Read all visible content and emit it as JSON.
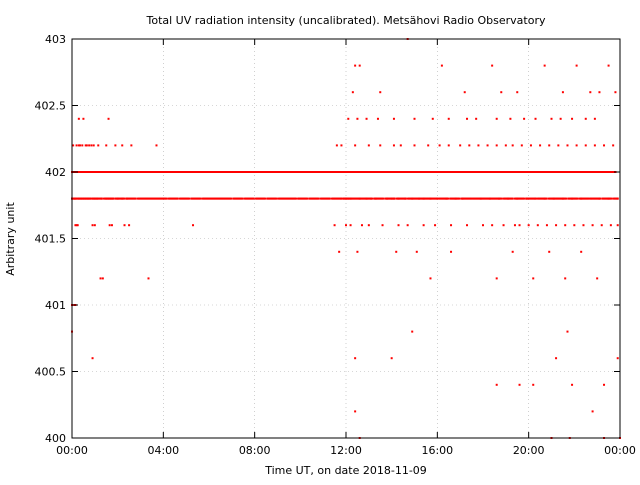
{
  "chart_data": {
    "type": "scatter",
    "title": "Total UV radiation intensity (uncalibrated). Metsähovi Radio Observatory",
    "xlabel": "Time UT, on date 2018-11-09",
    "ylabel": "Arbitrary unit",
    "x_unit": "hours UT",
    "xlim": [
      0,
      24
    ],
    "ylim": [
      400,
      403
    ],
    "x_ticks": [
      0,
      4,
      8,
      12,
      16,
      20,
      24
    ],
    "x_tick_labels": [
      "00:00",
      "04:00",
      "08:00",
      "12:00",
      "16:00",
      "20:00",
      "00:00"
    ],
    "y_ticks": [
      400,
      400.5,
      401,
      401.5,
      402,
      402.5,
      403
    ],
    "y_tick_labels": [
      "400",
      "400.5",
      "401",
      "401.5",
      "402",
      "402.5",
      "403"
    ],
    "grid": true,
    "marker_color": "#ff0000",
    "series": [
      {
        "values_note": "",
        "x": [
          0.0,
          0.04,
          0.08,
          0.12,
          0.15,
          0.2,
          0.25,
          0.3,
          0.35,
          0.4,
          0.45,
          0.5,
          0.55,
          0.6,
          0.7,
          0.8,
          0.9,
          1.0,
          1.1,
          1.2,
          0.0,
          0.1,
          0.15,
          0.3,
          0.4,
          0.5,
          0.6,
          0.7,
          0.8,
          0.9,
          1.0,
          1.1,
          1.3,
          1.5,
          1.6,
          1.7,
          1.8,
          2.0,
          2.2,
          2.4,
          0.05,
          0.1,
          0.3,
          0.5,
          0.6,
          0.9,
          1.0,
          1.5,
          1.7,
          1.9,
          2.1,
          2.3,
          2.5,
          2.9,
          3.2,
          3.5,
          3.6,
          3.7,
          3.8,
          5.3,
          0.05,
          0.2,
          0.3,
          0.35,
          0.45,
          0.6,
          0.65,
          0.75,
          0.85,
          0.95,
          1.15,
          1.5,
          1.9,
          2.2,
          2.6,
          3.7,
          0.15,
          0.2,
          0.25,
          0.9,
          1.0,
          1.65,
          1.75,
          2.3,
          2.5,
          0.3,
          0.5,
          1.6,
          0.0,
          0.1,
          0.15,
          1.25,
          1.35,
          3.35,
          0.0,
          0.9,
          11.7,
          12.3,
          12.45,
          12.55,
          12.7,
          13.2,
          13.4,
          14.2,
          14.5,
          14.8,
          15.1,
          15.5,
          15.9,
          16.3,
          16.7,
          17.2,
          17.6,
          18.0,
          18.5,
          19.0,
          19.4,
          19.8,
          20.2,
          20.6,
          21.0,
          21.4,
          21.8,
          22.2,
          22.6,
          23.0,
          23.4,
          23.8,
          11.8,
          11.9,
          12.0,
          12.1,
          12.2,
          12.6,
          12.9,
          13.1,
          13.3,
          13.8,
          14.0,
          14.1,
          14.3,
          14.6,
          14.9,
          15.2,
          15.4,
          15.7,
          16.0,
          16.4,
          16.8,
          17.1,
          17.5,
          17.9,
          18.3,
          18.7,
          19.1,
          19.5,
          19.9,
          20.3,
          20.7,
          21.1,
          21.5,
          21.9,
          22.3,
          22.7,
          23.1,
          23.5,
          23.9,
          11.6,
          11.8,
          12.4,
          13.0,
          13.5,
          14.1,
          14.4,
          15.0,
          15.6,
          16.1,
          16.5,
          17.0,
          17.4,
          17.8,
          18.2,
          18.6,
          19.0,
          19.3,
          19.7,
          20.1,
          20.5,
          20.9,
          21.3,
          21.7,
          22.1,
          22.5,
          22.9,
          23.3,
          23.7,
          11.5,
          12.0,
          12.2,
          12.7,
          13.0,
          13.6,
          14.3,
          14.7,
          15.4,
          15.9,
          16.6,
          17.3,
          18.0,
          18.4,
          18.9,
          19.4,
          19.6,
          20.0,
          20.4,
          20.8,
          21.2,
          21.6,
          22.0,
          22.4,
          22.8,
          23.2,
          23.6,
          23.9,
          12.1,
          12.5,
          12.9,
          13.4,
          14.1,
          15.0,
          15.8,
          16.5,
          17.3,
          17.7,
          18.6,
          19.2,
          19.8,
          20.3,
          21.0,
          21.4,
          21.9,
          22.5,
          22.9,
          12.3,
          12.4,
          12.6,
          13.5,
          14.7,
          16.2,
          17.2,
          18.4,
          18.8,
          19.5,
          20.7,
          21.5,
          22.1,
          22.7,
          23.1,
          23.5,
          23.8,
          11.7,
          12.5,
          14.2,
          15.1,
          15.7,
          16.6,
          18.6,
          19.3,
          20.2,
          20.9,
          21.6,
          22.3,
          23.0,
          14.9,
          21.7,
          12.4,
          14.0,
          18.6,
          19.6,
          20.2,
          21.2,
          21.9,
          23.3,
          23.9,
          12.4,
          22.8,
          12.6,
          21.0,
          21.8,
          23.3,
          24.0
        ],
        "y": [
          402,
          402,
          402,
          402,
          402,
          402,
          402,
          402,
          402,
          402,
          402,
          402,
          402,
          402,
          402,
          402,
          402,
          402,
          402,
          402,
          401.8,
          401.8,
          401.8,
          401.8,
          401.8,
          401.8,
          401.8,
          401.8,
          401.8,
          401.8,
          401.8,
          401.8,
          401.8,
          401.8,
          401.8,
          401.8,
          401.8,
          401.8,
          401.8,
          401.8,
          402,
          402,
          402,
          402,
          402,
          402,
          402,
          402,
          402,
          402,
          402,
          402,
          402,
          402,
          402,
          402,
          402,
          402,
          402,
          401.6,
          402.2,
          402.2,
          402.2,
          402.2,
          402.2,
          402.2,
          402.2,
          402.2,
          402.2,
          402.2,
          402.2,
          402.2,
          402.2,
          402.2,
          402.2,
          402.2,
          401.6,
          401.6,
          401.6,
          401.6,
          401.6,
          401.6,
          401.6,
          401.6,
          401.6,
          402.4,
          402.4,
          402.4,
          401,
          401,
          401,
          401.2,
          401.2,
          401.2,
          400.8,
          400.6,
          402,
          402,
          402,
          402,
          402,
          402,
          402,
          402,
          402,
          402,
          402,
          402,
          402,
          402,
          402,
          402,
          402,
          402,
          402,
          402,
          402,
          402,
          402,
          402,
          402,
          402,
          402,
          402,
          402,
          402,
          402,
          402,
          401.8,
          401.8,
          401.8,
          401.8,
          401.8,
          401.8,
          401.8,
          401.8,
          401.8,
          401.8,
          401.8,
          401.8,
          401.8,
          401.8,
          401.8,
          401.8,
          401.8,
          401.8,
          401.8,
          401.8,
          401.8,
          401.8,
          401.8,
          401.8,
          401.8,
          401.8,
          401.8,
          401.8,
          401.8,
          401.8,
          401.8,
          401.8,
          401.8,
          401.8,
          401.8,
          401.8,
          401.8,
          401.8,
          401.8,
          402.2,
          402.2,
          402.2,
          402.2,
          402.2,
          402.2,
          402.2,
          402.2,
          402.2,
          402.2,
          402.2,
          402.2,
          402.2,
          402.2,
          402.2,
          402.2,
          402.2,
          402.2,
          402.2,
          402.2,
          402.2,
          402.2,
          402.2,
          402.2,
          402.2,
          402.2,
          402.2,
          402.2,
          402.2,
          401.6,
          401.6,
          401.6,
          401.6,
          401.6,
          401.6,
          401.6,
          401.6,
          401.6,
          401.6,
          401.6,
          401.6,
          401.6,
          401.6,
          401.6,
          401.6,
          401.6,
          401.6,
          401.6,
          401.6,
          401.6,
          401.6,
          401.6,
          401.6,
          401.6,
          401.6,
          401.6,
          401.6,
          402.4,
          402.4,
          402.4,
          402.4,
          402.4,
          402.4,
          402.4,
          402.4,
          402.4,
          402.4,
          402.4,
          402.4,
          402.4,
          402.4,
          402.4,
          402.4,
          402.4,
          402.4,
          402.4,
          402.6,
          402.8,
          402.8,
          402.6,
          403,
          402.8,
          402.6,
          402.8,
          402.6,
          402.6,
          402.8,
          402.6,
          402.8,
          402.6,
          402.6,
          402.8,
          402.6,
          401.4,
          401.4,
          401.4,
          401.4,
          401.2,
          401.4,
          401.2,
          401.4,
          401.2,
          401.4,
          401.2,
          401.4,
          401.2,
          400.8,
          400.8,
          400.6,
          400.6,
          400.4,
          400.4,
          400.4,
          400.6,
          400.4,
          400.4,
          400.6,
          400.2,
          400.2,
          400,
          400,
          400,
          400,
          400
        ]
      }
    ]
  }
}
